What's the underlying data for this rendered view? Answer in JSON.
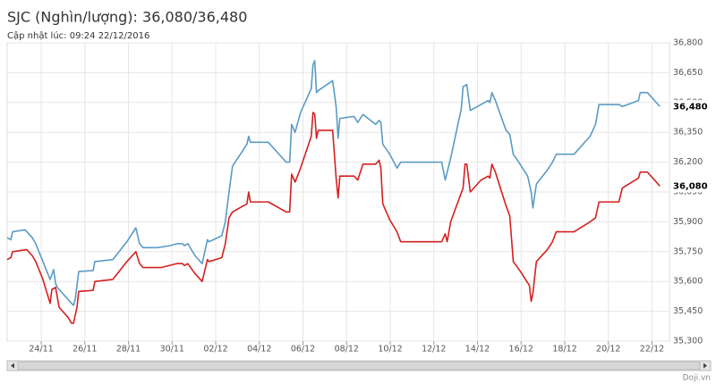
{
  "chart_data": {
    "type": "line",
    "title": "SJC (Nghìn/lượng): 36,080/36,480",
    "subtitle": "Cập nhật lúc: 09:24 22/12/2016",
    "source": "Doji.vn",
    "grid": true,
    "xlim": [
      -1.56,
      28.8
    ],
    "ylim": [
      35300,
      36800
    ],
    "xticks": [
      {
        "value": 0,
        "label": "24/11"
      },
      {
        "value": 2,
        "label": "26/11"
      },
      {
        "value": 4,
        "label": "28/11"
      },
      {
        "value": 6,
        "label": "30/11"
      },
      {
        "value": 8,
        "label": "02/12"
      },
      {
        "value": 10,
        "label": "04/12"
      },
      {
        "value": 12,
        "label": "06/12"
      },
      {
        "value": 14,
        "label": "08/12"
      },
      {
        "value": 16,
        "label": "10/12"
      },
      {
        "value": 18,
        "label": "12/12"
      },
      {
        "value": 20,
        "label": "14/12"
      },
      {
        "value": 22,
        "label": "16/12"
      },
      {
        "value": 24,
        "label": "18/12"
      },
      {
        "value": 26,
        "label": "20/12"
      },
      {
        "value": 28,
        "label": "22/12"
      }
    ],
    "yticks": [
      {
        "value": 35300,
        "label": "35,300"
      },
      {
        "value": 35450,
        "label": "35,450"
      },
      {
        "value": 35600,
        "label": "35,600"
      },
      {
        "value": 35750,
        "label": "35,750"
      },
      {
        "value": 35900,
        "label": "35,900"
      },
      {
        "value": 36050,
        "label": "36,050"
      },
      {
        "value": 36200,
        "label": "36,200"
      },
      {
        "value": 36350,
        "label": "36,350"
      },
      {
        "value": 36500,
        "label": "36,500"
      },
      {
        "value": 36650,
        "label": "36,650"
      },
      {
        "value": 36800,
        "label": "36,800"
      }
    ],
    "y_markers": [
      {
        "value": 36480,
        "label": "36,480"
      },
      {
        "value": 36080,
        "label": "36,080"
      }
    ],
    "series": [
      {
        "color": "#5a9bc4",
        "x": [
          -1.56,
          -1.39,
          -1.31,
          -0.74,
          -0.41,
          -0.25,
          0.08,
          0.41,
          0.57,
          0.66,
          0.74,
          1.39,
          1.48,
          1.56,
          1.72,
          2.38,
          2.46,
          3.28,
          3.93,
          4.34,
          4.51,
          4.67,
          5.33,
          5.9,
          6.23,
          6.48,
          6.56,
          6.72,
          7.05,
          7.38,
          7.62,
          7.7,
          8.28,
          8.44,
          8.61,
          8.77,
          9.43,
          9.51,
          9.59,
          10.41,
          11.23,
          11.39,
          11.48,
          11.64,
          11.89,
          12.38,
          12.46,
          12.54,
          12.62,
          12.7,
          13.36,
          13.52,
          13.61,
          13.69,
          14.34,
          14.51,
          14.75,
          15.33,
          15.49,
          15.57,
          15.66,
          15.98,
          16.31,
          16.48,
          18.36,
          18.52,
          18.77,
          19.26,
          19.34,
          19.51,
          19.67,
          20.16,
          20.49,
          20.57,
          20.66,
          20.82,
          21.31,
          21.48,
          21.64,
          21.89,
          22.3,
          22.46,
          22.54,
          22.7,
          23.2,
          23.44,
          23.61,
          24.43,
          25.16,
          25.41,
          25.57,
          26.48,
          26.64,
          27.38,
          27.46,
          27.79,
          28.36
        ],
        "values": [
          35820,
          35810,
          35850,
          35860,
          35820,
          35790,
          35700,
          35610,
          35660,
          35590,
          35570,
          35490,
          35480,
          35510,
          35650,
          35655,
          35700,
          35710,
          35800,
          35870,
          35790,
          35770,
          35770,
          35780,
          35790,
          35790,
          35780,
          35790,
          35730,
          35690,
          35810,
          35800,
          35830,
          35900,
          36050,
          36180,
          36290,
          36330,
          36300,
          36300,
          36200,
          36200,
          36390,
          36350,
          36450,
          36570,
          36690,
          36710,
          36550,
          36560,
          36610,
          36480,
          36320,
          36420,
          36430,
          36400,
          36440,
          36390,
          36410,
          36400,
          36290,
          36240,
          36170,
          36200,
          36200,
          36110,
          36220,
          36470,
          36580,
          36590,
          36460,
          36490,
          36510,
          36500,
          36550,
          36510,
          36360,
          36340,
          36240,
          36200,
          36130,
          36050,
          35970,
          36090,
          36160,
          36200,
          36240,
          36240,
          36330,
          36390,
          36490,
          36490,
          36480,
          36510,
          36550,
          36550,
          36480
        ]
      },
      {
        "color": "#d42020",
        "x": [
          -1.56,
          -1.39,
          -1.31,
          -0.66,
          -0.41,
          -0.25,
          0.08,
          0.41,
          0.49,
          0.66,
          0.82,
          1.23,
          1.39,
          1.48,
          1.64,
          1.72,
          2.38,
          2.46,
          3.28,
          3.93,
          4.34,
          4.51,
          4.67,
          5.49,
          6.23,
          6.48,
          6.56,
          6.72,
          7.05,
          7.38,
          7.62,
          7.7,
          8.28,
          8.44,
          8.61,
          8.77,
          9.43,
          9.51,
          9.59,
          10.41,
          11.23,
          11.39,
          11.48,
          11.64,
          11.89,
          12.38,
          12.46,
          12.54,
          12.62,
          12.7,
          13.36,
          13.52,
          13.61,
          13.69,
          14.34,
          14.51,
          14.75,
          15.33,
          15.49,
          15.57,
          15.66,
          15.98,
          16.31,
          16.48,
          18.36,
          18.52,
          18.61,
          18.77,
          19.34,
          19.43,
          19.51,
          19.67,
          20.16,
          20.49,
          20.57,
          20.66,
          20.82,
          21.31,
          21.48,
          21.64,
          21.97,
          22.38,
          22.46,
          22.54,
          22.7,
          23.2,
          23.44,
          23.61,
          24.43,
          25.16,
          25.41,
          25.57,
          26.48,
          26.64,
          27.38,
          27.46,
          27.79,
          28.36
        ],
        "values": [
          35710,
          35720,
          35750,
          35760,
          35730,
          35700,
          35610,
          35490,
          35560,
          35570,
          35470,
          35420,
          35390,
          35390,
          35470,
          35550,
          35555,
          35600,
          35610,
          35700,
          35750,
          35690,
          35670,
          35670,
          35690,
          35690,
          35680,
          35690,
          35640,
          35600,
          35710,
          35700,
          35720,
          35790,
          35920,
          35950,
          35990,
          36050,
          36000,
          36000,
          35950,
          35950,
          36140,
          36100,
          36170,
          36330,
          36450,
          36440,
          36320,
          36360,
          36360,
          36120,
          36020,
          36130,
          36130,
          36110,
          36190,
          36190,
          36210,
          36170,
          35990,
          35910,
          35850,
          35800,
          35800,
          35840,
          35800,
          35900,
          36070,
          36190,
          36190,
          36050,
          36110,
          36130,
          36120,
          36190,
          36150,
          35980,
          35930,
          35700,
          35650,
          35580,
          35500,
          35540,
          35700,
          35760,
          35800,
          35850,
          35850,
          35900,
          35920,
          36000,
          36000,
          36070,
          36120,
          36150,
          36150,
          36080
        ]
      }
    ]
  }
}
